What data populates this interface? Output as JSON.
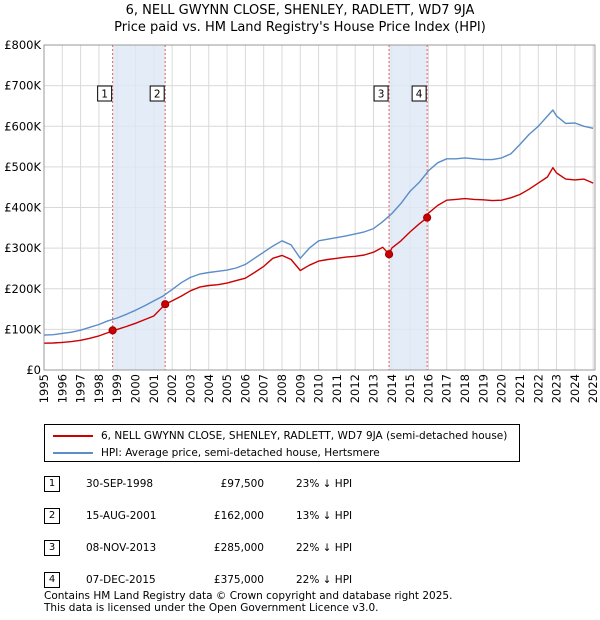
{
  "title_line1": "6, NELL GWYNN CLOSE, SHENLEY, RADLETT, WD7 9JA",
  "title_line2": "Price paid vs. HM Land Registry's House Price Index (HPI)",
  "chart_data": {
    "type": "line",
    "title": "6, NELL GWYNN CLOSE, SHENLEY, RADLETT, WD7 9JA — Price paid vs. HM Land Registry's House Price Index (HPI)",
    "xlim": [
      1995,
      2025.1
    ],
    "ylim": [
      0,
      800000
    ],
    "y_ticks": [
      {
        "value": 0,
        "label": "£0"
      },
      {
        "value": 100000,
        "label": "£100K"
      },
      {
        "value": 200000,
        "label": "£200K"
      },
      {
        "value": 300000,
        "label": "£300K"
      },
      {
        "value": 400000,
        "label": "£400K"
      },
      {
        "value": 500000,
        "label": "£500K"
      },
      {
        "value": 600000,
        "label": "£600K"
      },
      {
        "value": 700000,
        "label": "£700K"
      },
      {
        "value": 800000,
        "label": "£800K"
      }
    ],
    "x_ticks": [
      "1995",
      "1996",
      "1997",
      "1998",
      "1999",
      "2000",
      "2001",
      "2002",
      "2003",
      "2004",
      "2005",
      "2006",
      "2007",
      "2008",
      "2009",
      "2010",
      "2011",
      "2012",
      "2013",
      "2014",
      "2015",
      "2016",
      "2017",
      "2018",
      "2019",
      "2020",
      "2021",
      "2022",
      "2023",
      "2024",
      "2025"
    ],
    "grid": true,
    "series": [
      {
        "name": "6, NELL GWYNN CLOSE, SHENLEY, RADLETT, WD7 9JA (semi-detached house)",
        "color": "#cc0000",
        "x": [
          1995.0,
          1995.5,
          1996.0,
          1996.5,
          1997.0,
          1997.5,
          1998.0,
          1998.5,
          1998.75,
          1999.0,
          1999.5,
          2000.0,
          2000.5,
          2001.0,
          2001.62,
          2002.0,
          2002.5,
          2003.0,
          2003.5,
          2004.0,
          2004.5,
          2005.0,
          2005.5,
          2006.0,
          2006.5,
          2007.0,
          2007.5,
          2008.0,
          2008.5,
          2009.0,
          2009.5,
          2010.0,
          2010.5,
          2011.0,
          2011.5,
          2012.0,
          2012.5,
          2013.0,
          2013.5,
          2013.85,
          2014.0,
          2014.5,
          2015.0,
          2015.5,
          2015.93,
          2016.0,
          2016.5,
          2017.0,
          2017.5,
          2018.0,
          2018.5,
          2019.0,
          2019.5,
          2020.0,
          2020.5,
          2021.0,
          2021.5,
          2022.0,
          2022.5,
          2022.8,
          2023.0,
          2023.5,
          2024.0,
          2024.5,
          2025.0
        ],
        "values": [
          66000,
          66500,
          68000,
          70000,
          73000,
          78000,
          84000,
          92000,
          97500,
          100000,
          107000,
          115000,
          124000,
          133000,
          162000,
          170000,
          182000,
          195000,
          204000,
          208000,
          210000,
          214000,
          220000,
          226000,
          240000,
          255000,
          275000,
          282000,
          272000,
          245000,
          258000,
          268000,
          272000,
          275000,
          278000,
          280000,
          283000,
          290000,
          302000,
          285000,
          300000,
          318000,
          340000,
          360000,
          375000,
          386000,
          405000,
          418000,
          420000,
          422000,
          420000,
          419000,
          417000,
          418000,
          424000,
          432000,
          445000,
          460000,
          475000,
          498000,
          485000,
          470000,
          468000,
          470000,
          460000
        ]
      },
      {
        "name": "HPI: Average price, semi-detached house, Hertsmere",
        "color": "#5b8dc8",
        "x": [
          1995.0,
          1995.5,
          1996.0,
          1996.5,
          1997.0,
          1997.5,
          1998.0,
          1998.5,
          1999.0,
          1999.5,
          2000.0,
          2000.5,
          2001.0,
          2001.5,
          2002.0,
          2002.5,
          2003.0,
          2003.5,
          2004.0,
          2004.5,
          2005.0,
          2005.5,
          2006.0,
          2006.5,
          2007.0,
          2007.5,
          2008.0,
          2008.5,
          2009.0,
          2009.5,
          2010.0,
          2010.5,
          2011.0,
          2011.5,
          2012.0,
          2012.5,
          2013.0,
          2013.5,
          2014.0,
          2014.5,
          2015.0,
          2015.5,
          2016.0,
          2016.5,
          2017.0,
          2017.5,
          2018.0,
          2018.5,
          2019.0,
          2019.5,
          2020.0,
          2020.5,
          2021.0,
          2021.5,
          2022.0,
          2022.5,
          2022.8,
          2023.0,
          2023.5,
          2024.0,
          2024.5,
          2025.0
        ],
        "values": [
          86000,
          87000,
          90000,
          93000,
          98000,
          105000,
          112000,
          121000,
          128000,
          137000,
          147000,
          158000,
          170000,
          182000,
          198000,
          215000,
          228000,
          236000,
          240000,
          243000,
          246000,
          251000,
          260000,
          275000,
          290000,
          305000,
          318000,
          308000,
          275000,
          300000,
          318000,
          322000,
          326000,
          330000,
          335000,
          340000,
          348000,
          365000,
          385000,
          410000,
          440000,
          462000,
          490000,
          510000,
          520000,
          520000,
          522000,
          520000,
          518000,
          518000,
          522000,
          532000,
          555000,
          580000,
          600000,
          625000,
          640000,
          625000,
          607000,
          608000,
          600000,
          595000
        ]
      }
    ],
    "sales": [
      {
        "label": "1",
        "x": 1998.75,
        "price": 97500
      },
      {
        "label": "2",
        "x": 2001.62,
        "price": 162000
      },
      {
        "label": "3",
        "x": 2013.85,
        "price": 285000
      },
      {
        "label": "4",
        "x": 2015.93,
        "price": 375000
      }
    ],
    "shaded_spans": [
      [
        1998.75,
        2001.62
      ],
      [
        2013.85,
        2015.93
      ]
    ]
  },
  "legend": {
    "property": "6, NELL GWYNN CLOSE, SHENLEY, RADLETT, WD7 9JA (semi-detached house)",
    "hpi": "HPI: Average price, semi-detached house, Hertsmere"
  },
  "sales_table": [
    {
      "num": "1",
      "date": "30-SEP-1998",
      "price": "£97,500",
      "hpi": "23% ↓ HPI"
    },
    {
      "num": "2",
      "date": "15-AUG-2001",
      "price": "£162,000",
      "hpi": "13% ↓ HPI"
    },
    {
      "num": "3",
      "date": "08-NOV-2013",
      "price": "£285,000",
      "hpi": "22% ↓ HPI"
    },
    {
      "num": "4",
      "date": "07-DEC-2015",
      "price": "£375,000",
      "hpi": "22% ↓ HPI"
    }
  ],
  "footer_line1": "Contains HM Land Registry data © Crown copyright and database right 2025.",
  "footer_line2": "This data is licensed under the Open Government Licence v3.0."
}
